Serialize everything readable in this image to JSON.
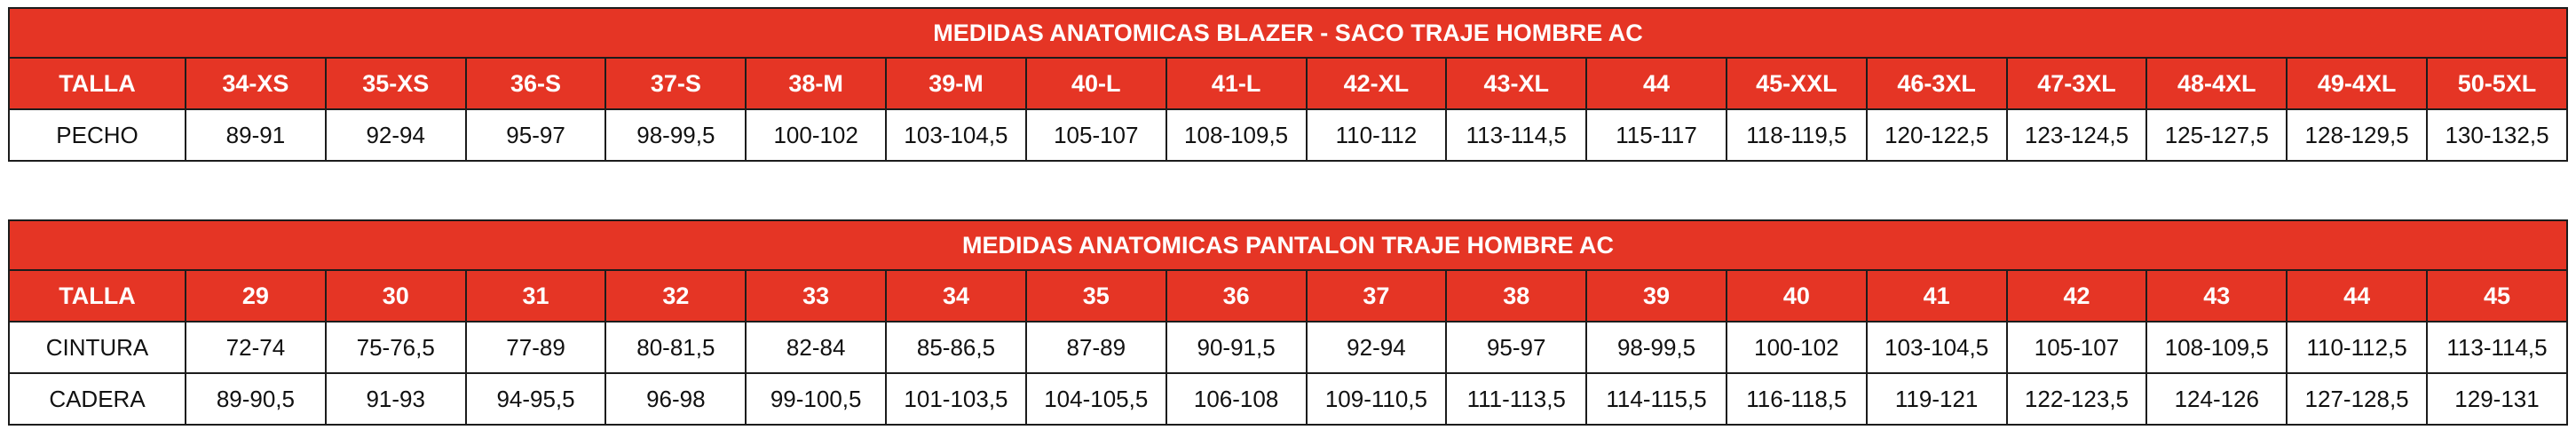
{
  "blazer": {
    "title": "MEDIDAS ANATOMICAS BLAZER - SACO TRAJE HOMBRE AC",
    "header_label": "TALLA",
    "sizes": [
      "34-XS",
      "35-XS",
      "36-S",
      "37-S",
      "38-M",
      "39-M",
      "40-L",
      "41-L",
      "42-XL",
      "43-XL",
      "44",
      "45-XXL",
      "46-3XL",
      "47-3XL",
      "48-4XL",
      "49-4XL",
      "50-5XL"
    ],
    "rows": [
      {
        "label": "PECHO",
        "values": [
          "89-91",
          "92-94",
          "95-97",
          "98-99,5",
          "100-102",
          "103-104,5",
          "105-107",
          "108-109,5",
          "110-112",
          "113-114,5",
          "115-117",
          "118-119,5",
          "120-122,5",
          "123-124,5",
          "125-127,5",
          "128-129,5",
          "130-132,5"
        ]
      }
    ]
  },
  "pantalon": {
    "title": "MEDIDAS ANATOMICAS PANTALON TRAJE HOMBRE AC",
    "header_label": "TALLA",
    "sizes": [
      "29",
      "30",
      "31",
      "32",
      "33",
      "34",
      "35",
      "36",
      "37",
      "38",
      "39",
      "40",
      "41",
      "42",
      "43",
      "44",
      "45"
    ],
    "rows": [
      {
        "label": "CINTURA",
        "values": [
          "72-74",
          "75-76,5",
          "77-89",
          "80-81,5",
          "82-84",
          "85-86,5",
          "87-89",
          "90-91,5",
          "92-94",
          "95-97",
          "98-99,5",
          "100-102",
          "103-104,5",
          "105-107",
          "108-109,5",
          "110-112,5",
          "113-114,5"
        ]
      },
      {
        "label": "CADERA",
        "values": [
          "89-90,5",
          "91-93",
          "94-95,5",
          "96-98",
          "99-100,5",
          "101-103,5",
          "104-105,5",
          "106-108",
          "109-110,5",
          "111-113,5",
          "114-115,5",
          "116-118,5",
          "119-121",
          "122-123,5",
          "124-126",
          "127-128,5",
          "129-131"
        ]
      }
    ]
  },
  "colors": {
    "header_red": "#e53525",
    "border": "#1c1c1c",
    "header_text": "#ffffff",
    "body_text": "#111111"
  }
}
